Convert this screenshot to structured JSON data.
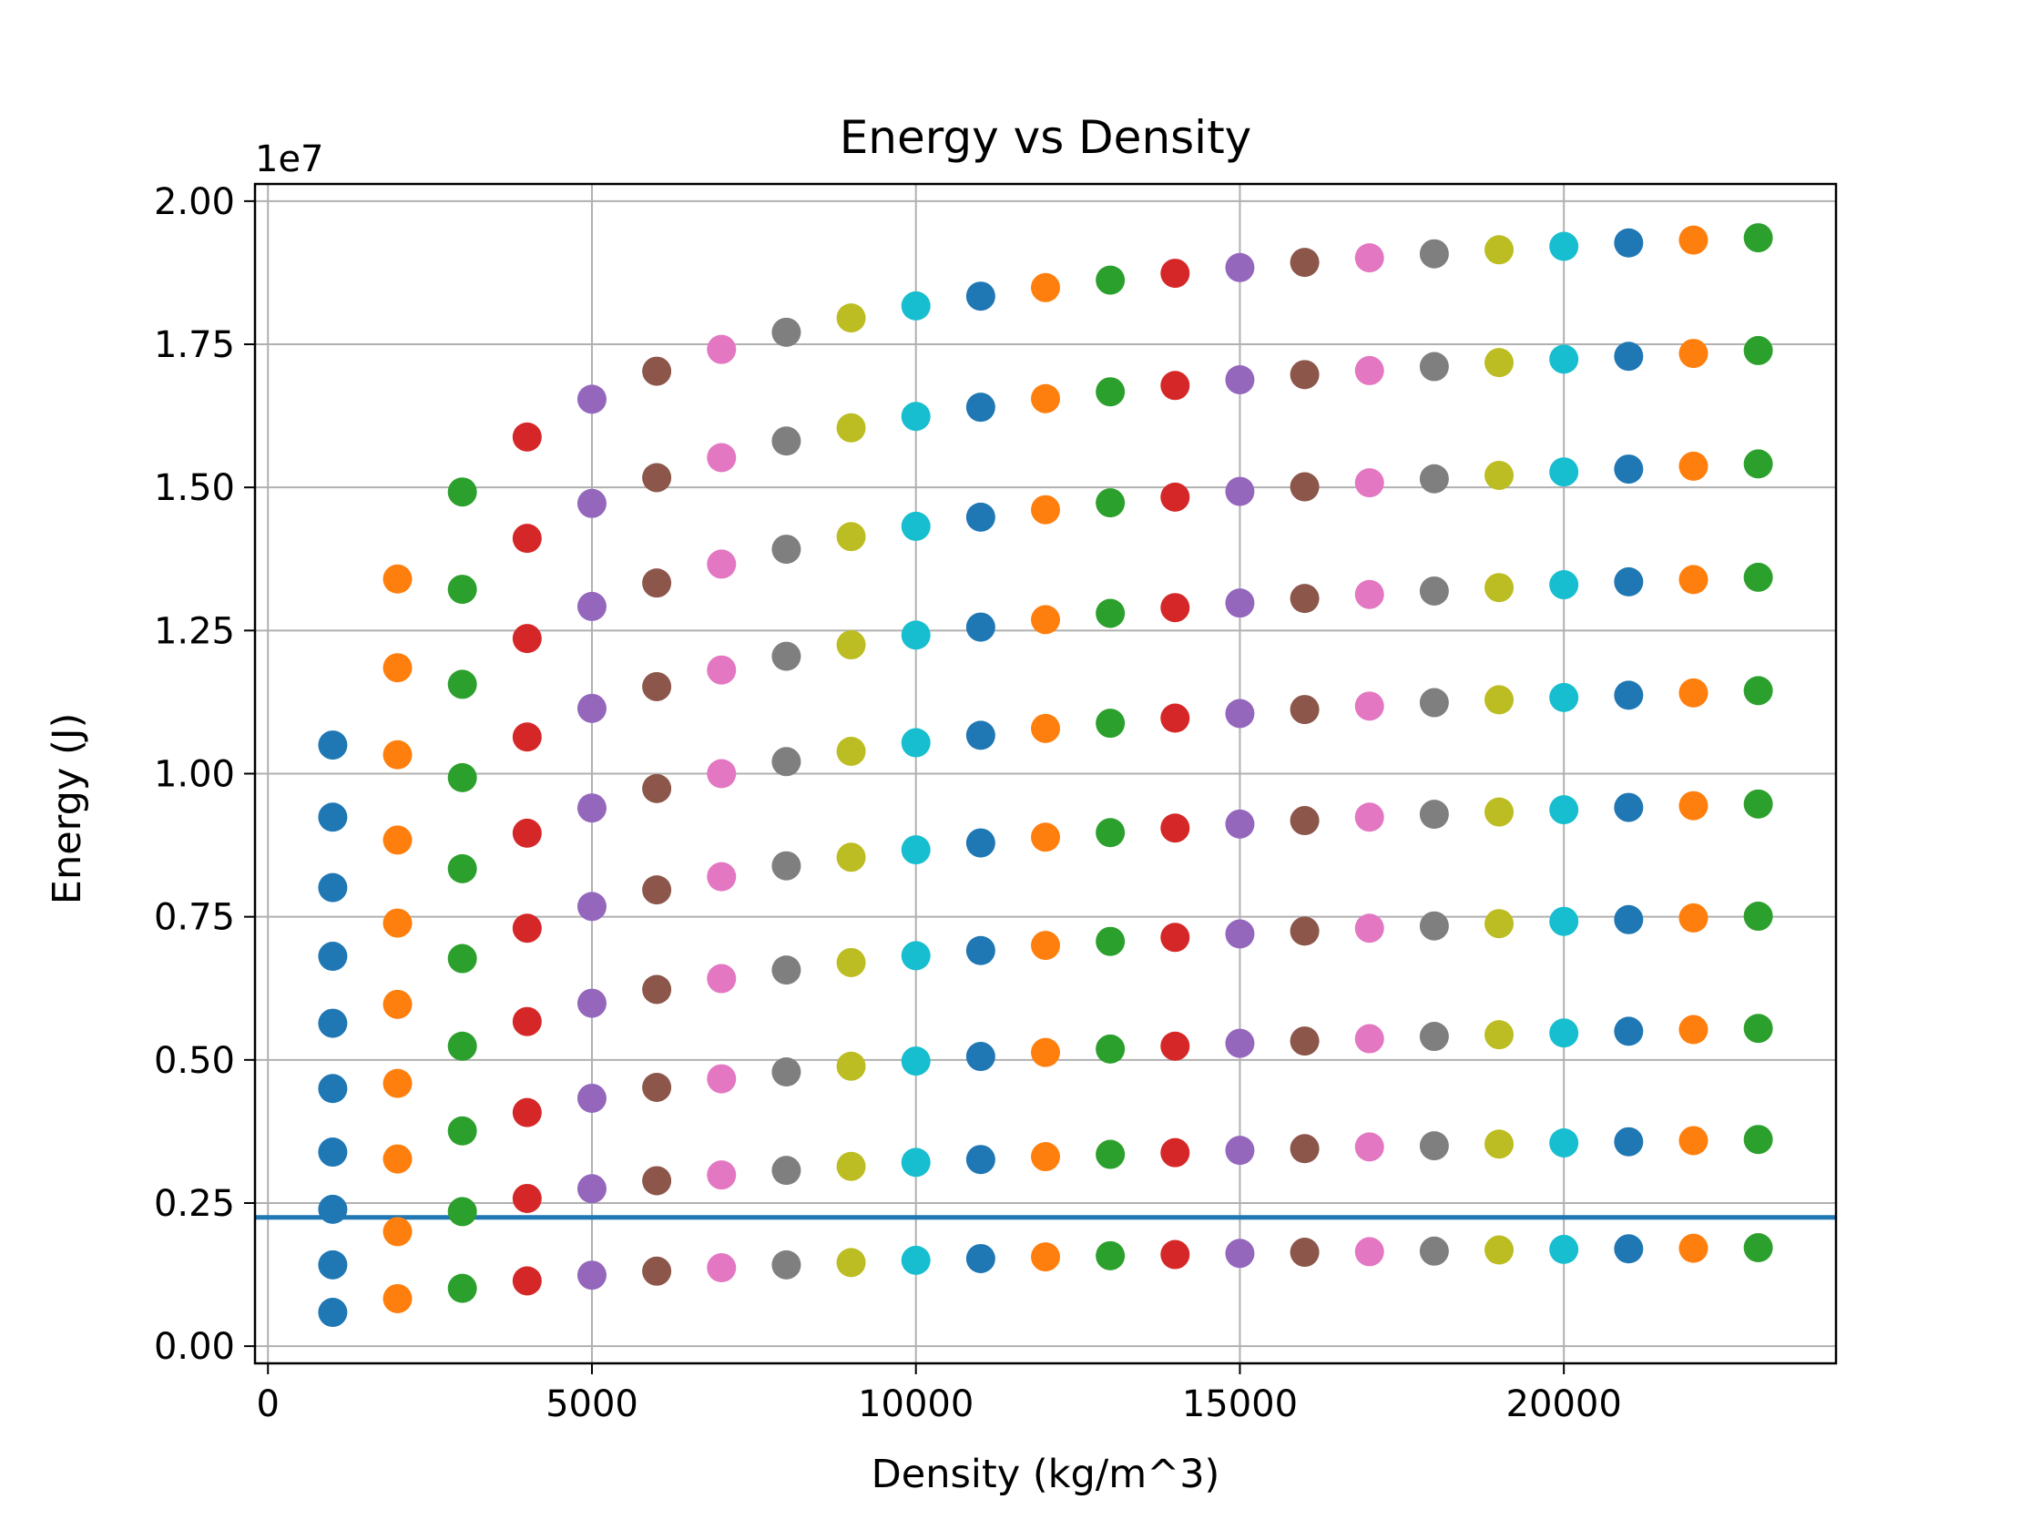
{
  "chart_data": {
    "type": "scatter",
    "title": "Energy vs Density",
    "xlabel": "Density (kg/m^3)",
    "ylabel": "Energy (J)",
    "y_offset_label": "1e7",
    "xlim": [
      -200,
      24200
    ],
    "ylim": [
      -0.03,
      2.03
    ],
    "y_unit_multiplier": 10000000,
    "xticks": [
      0,
      5000,
      10000,
      15000,
      20000
    ],
    "xtick_labels": [
      "0",
      "5000",
      "10000",
      "15000",
      "20000"
    ],
    "yticks": [
      0,
      0.25,
      0.5,
      0.75,
      1.0,
      1.25,
      1.5,
      1.75,
      2.0
    ],
    "ytick_labels": [
      "0.00",
      "0.25",
      "0.50",
      "0.75",
      "1.00",
      "1.25",
      "1.50",
      "1.75",
      "2.00"
    ],
    "grid": true,
    "legend": "none",
    "palette": [
      "#1f77b4",
      "#ff7f0e",
      "#2ca02c",
      "#d62728",
      "#9467bd",
      "#8c564b",
      "#e377c2",
      "#7f7f7f",
      "#bcbd22",
      "#17becf"
    ],
    "x": [
      1000,
      2000,
      3000,
      4000,
      5000,
      6000,
      7000,
      8000,
      9000,
      10000,
      11000,
      12000,
      13000,
      14000,
      15000,
      16000,
      17000,
      18000,
      19000,
      20000,
      21000,
      22000,
      23000
    ],
    "series": [
      {
        "values": [
          0.059,
          0.083,
          0.101,
          0.114,
          0.124,
          0.131,
          0.137,
          0.142,
          0.146,
          0.15,
          0.153,
          0.156,
          0.158,
          0.16,
          0.162,
          0.164,
          0.165,
          0.166,
          0.168,
          0.169,
          0.17,
          0.171,
          0.172
        ]
      },
      {
        "values": [
          0.142,
          0.2,
          0.235,
          0.258,
          0.275,
          0.289,
          0.299,
          0.307,
          0.314,
          0.321,
          0.326,
          0.331,
          0.335,
          0.338,
          0.342,
          0.345,
          0.348,
          0.35,
          0.353,
          0.355,
          0.357,
          0.359,
          0.361
        ]
      },
      {
        "values": [
          0.239,
          0.327,
          0.376,
          0.408,
          0.433,
          0.452,
          0.467,
          0.479,
          0.489,
          0.498,
          0.506,
          0.513,
          0.519,
          0.524,
          0.529,
          0.533,
          0.537,
          0.541,
          0.544,
          0.547,
          0.55,
          0.553,
          0.555
        ]
      },
      {
        "values": [
          0.339,
          0.459,
          0.524,
          0.567,
          0.599,
          0.623,
          0.642,
          0.657,
          0.67,
          0.682,
          0.691,
          0.7,
          0.707,
          0.714,
          0.72,
          0.725,
          0.73,
          0.734,
          0.738,
          0.742,
          0.745,
          0.748,
          0.751
        ]
      },
      {
        "values": [
          0.45,
          0.597,
          0.677,
          0.73,
          0.768,
          0.797,
          0.82,
          0.839,
          0.854,
          0.867,
          0.879,
          0.889,
          0.897,
          0.905,
          0.912,
          0.918,
          0.924,
          0.929,
          0.933,
          0.937,
          0.941,
          0.944,
          0.947
        ]
      },
      {
        "values": [
          0.564,
          0.739,
          0.834,
          0.896,
          0.94,
          0.974,
          1.0,
          1.021,
          1.039,
          1.054,
          1.067,
          1.079,
          1.088,
          1.097,
          1.105,
          1.112,
          1.118,
          1.124,
          1.129,
          1.133,
          1.137,
          1.141,
          1.145
        ]
      },
      {
        "values": [
          0.681,
          0.884,
          0.993,
          1.064,
          1.114,
          1.152,
          1.181,
          1.205,
          1.225,
          1.242,
          1.256,
          1.269,
          1.28,
          1.29,
          1.298,
          1.306,
          1.313,
          1.319,
          1.325,
          1.33,
          1.335,
          1.339,
          1.343
        ]
      },
      {
        "values": [
          0.801,
          1.033,
          1.156,
          1.236,
          1.292,
          1.333,
          1.366,
          1.392,
          1.414,
          1.432,
          1.448,
          1.461,
          1.473,
          1.483,
          1.493,
          1.501,
          1.508,
          1.515,
          1.521,
          1.527,
          1.532,
          1.537,
          1.541
        ]
      },
      {
        "values": [
          0.924,
          1.185,
          1.322,
          1.411,
          1.472,
          1.517,
          1.552,
          1.581,
          1.604,
          1.624,
          1.64,
          1.655,
          1.667,
          1.678,
          1.688,
          1.697,
          1.704,
          1.711,
          1.718,
          1.724,
          1.729,
          1.734,
          1.739
        ]
      },
      {
        "values": [
          1.05,
          1.34,
          1.492,
          1.588,
          1.654,
          1.703,
          1.741,
          1.771,
          1.796,
          1.817,
          1.834,
          1.849,
          1.862,
          1.874,
          1.884,
          1.893,
          1.901,
          1.908,
          1.915,
          1.921,
          1.927,
          1.932,
          1.936
        ]
      }
    ],
    "color_order": "cycle by point index across all series",
    "reference_line": {
      "y": 0.225,
      "color": "#1f77b4",
      "style": "solid horizontal"
    }
  }
}
